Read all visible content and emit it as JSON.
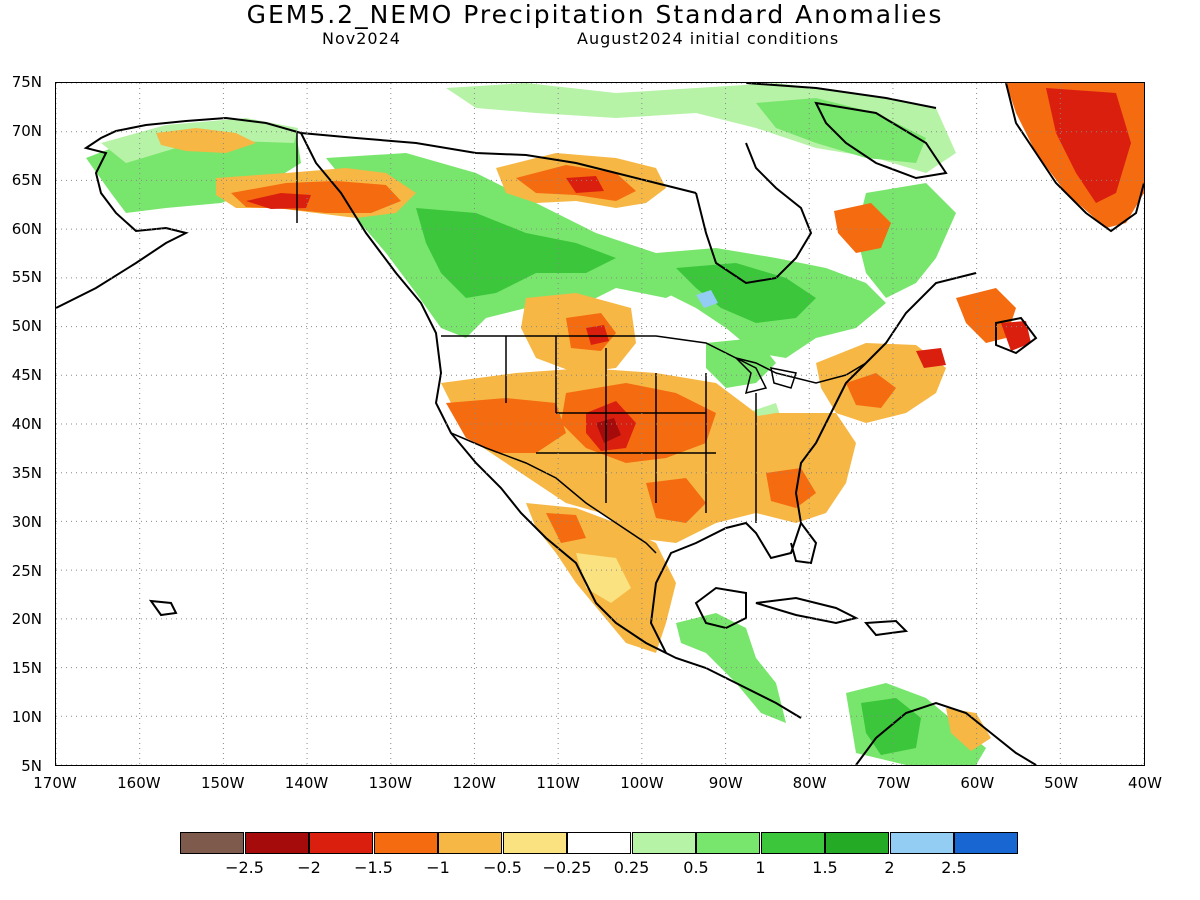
{
  "title": "GEM5.2_NEMO Precipitation Standard Anomalies",
  "subtitle_left": "Nov2024",
  "subtitle_right": "August2024 initial conditions",
  "lat_labels": [
    "75N",
    "70N",
    "65N",
    "60N",
    "55N",
    "50N",
    "45N",
    "40N",
    "35N",
    "30N",
    "25N",
    "20N",
    "15N",
    "10N",
    "5N"
  ],
  "lon_labels": [
    "170W",
    "160W",
    "150W",
    "140W",
    "130W",
    "120W",
    "110W",
    "100W",
    "90W",
    "80W",
    "70W",
    "60W",
    "50W",
    "40W"
  ],
  "colorbar": {
    "labels": [
      "-2.5",
      "-2",
      "-1.5",
      "-1",
      "-0.5",
      "-0.25",
      "0.25",
      "0.5",
      "1",
      "1.5",
      "2",
      "2.5"
    ],
    "colors": [
      "#7e5a4c",
      "#a50b0b",
      "#db1f0f",
      "#f46b10",
      "#f6b744",
      "#fbe280",
      "#ffffff",
      "#b6f3a6",
      "#78e66c",
      "#3bc63b",
      "#24aa24",
      "#93cdf4",
      "#1766d1"
    ]
  },
  "map": {
    "projection": "cylindrical lon/lat",
    "lon_range": [
      -170,
      -40
    ],
    "lat_range": [
      5,
      75
    ],
    "grid": "dotted",
    "anomaly_regions": [
      {
        "name": "Greenland south coast",
        "category": "-1.5"
      },
      {
        "name": "Southern Alaska / Yukon coast",
        "category": "-1.5"
      },
      {
        "name": "Nunavut west of Hudson Bay",
        "category": "-1.5"
      },
      {
        "name": "Labrador",
        "category": "-1"
      },
      {
        "name": "Newfoundland",
        "category": "-1.5"
      },
      {
        "name": "Northern Great Plains",
        "category": "-1.5"
      },
      {
        "name": "Great Basin / California",
        "category": "-1"
      },
      {
        "name": "Colorado / Kansas",
        "category": "-2"
      },
      {
        "name": "Southern Plains",
        "category": "-1"
      },
      {
        "name": "Southeast US",
        "category": "-0.5"
      },
      {
        "name": "Northeast US",
        "category": "-1"
      },
      {
        "name": "Mexico",
        "category": "-0.5"
      },
      {
        "name": "Western Canada / British Columbia",
        "category": "1"
      },
      {
        "name": "Canadian Shield / Ontario",
        "category": "1"
      },
      {
        "name": "Northwest Ontario",
        "category": "2"
      },
      {
        "name": "Arctic Archipelago",
        "category": "0.5"
      },
      {
        "name": "Central America",
        "category": "1"
      },
      {
        "name": "Northern South America",
        "category": "0.5"
      }
    ]
  }
}
